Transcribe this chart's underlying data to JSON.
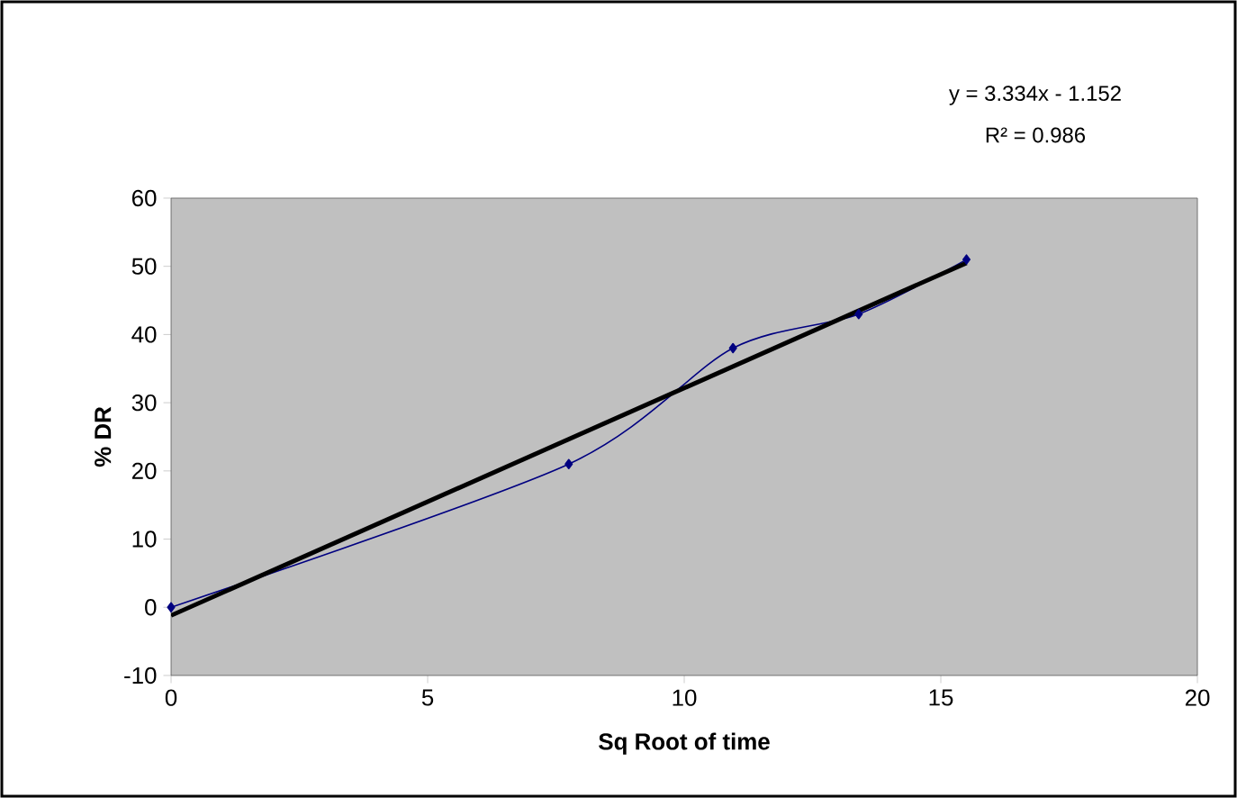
{
  "chart_data": {
    "type": "line",
    "xlabel": "Sq Root of time",
    "ylabel": "% DR",
    "annotations": [
      "y = 3.334x - 1.152",
      "R² = 0.986"
    ],
    "xlim": [
      0,
      20
    ],
    "xticks": [
      0,
      5,
      10,
      15,
      20
    ],
    "ylim": [
      -10,
      60
    ],
    "yticks": [
      -10,
      0,
      10,
      20,
      30,
      40,
      50,
      60
    ],
    "grid": false,
    "series": [
      {
        "color": "#000080",
        "x": [
          0,
          7.75,
          10.95,
          13.4,
          15.5
        ],
        "values": [
          0,
          21,
          38,
          43,
          51
        ],
        "marker": "diamond"
      },
      {
        "color": "#000000",
        "x": [
          0,
          15.5
        ],
        "values": [
          -1.2,
          50.5
        ],
        "marker": "none"
      }
    ]
  }
}
